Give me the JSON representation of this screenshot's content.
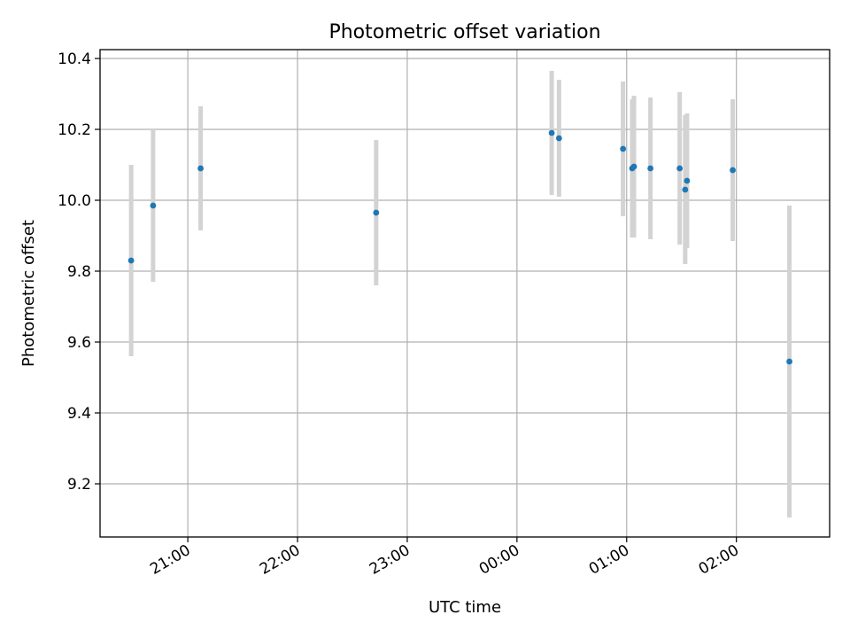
{
  "chart_data": {
    "type": "scatter",
    "title": "Photometric offset variation",
    "xlabel": "UTC time",
    "ylabel": "Photometric offset",
    "x_ticks": [
      "21:00",
      "22:00",
      "23:00",
      "00:00",
      "01:00",
      "02:00"
    ],
    "y_ticks": [
      "9.2",
      "9.4",
      "9.6",
      "9.8",
      "10.0",
      "10.2",
      "10.4"
    ],
    "xlim": [
      "20:12",
      "02:51"
    ],
    "ylim": [
      9.05,
      10.425
    ],
    "grid": true,
    "colors": {
      "point": "#1f77b4",
      "errorbar": "#d3d3d3"
    },
    "points": [
      {
        "x": "20:29",
        "y": 9.83,
        "err": 0.27
      },
      {
        "x": "20:41",
        "y": 9.985,
        "err": 0.215
      },
      {
        "x": "21:07",
        "y": 10.09,
        "err": 0.175
      },
      {
        "x": "22:43",
        "y": 9.965,
        "err": 0.205
      },
      {
        "x": "00:19",
        "y": 10.19,
        "err": 0.175
      },
      {
        "x": "00:23",
        "y": 10.175,
        "err": 0.165
      },
      {
        "x": "00:58",
        "y": 10.145,
        "err": 0.19
      },
      {
        "x": "01:03",
        "y": 10.09,
        "err": 0.195
      },
      {
        "x": "01:04",
        "y": 10.095,
        "err": 0.2
      },
      {
        "x": "01:13",
        "y": 10.09,
        "err": 0.2
      },
      {
        "x": "01:29",
        "y": 10.09,
        "err": 0.215
      },
      {
        "x": "01:32",
        "y": 10.03,
        "err": 0.21
      },
      {
        "x": "01:33",
        "y": 10.055,
        "err": 0.19
      },
      {
        "x": "01:58",
        "y": 10.085,
        "err": 0.2
      },
      {
        "x": "02:29",
        "y": 9.545,
        "err": 0.44
      }
    ]
  }
}
